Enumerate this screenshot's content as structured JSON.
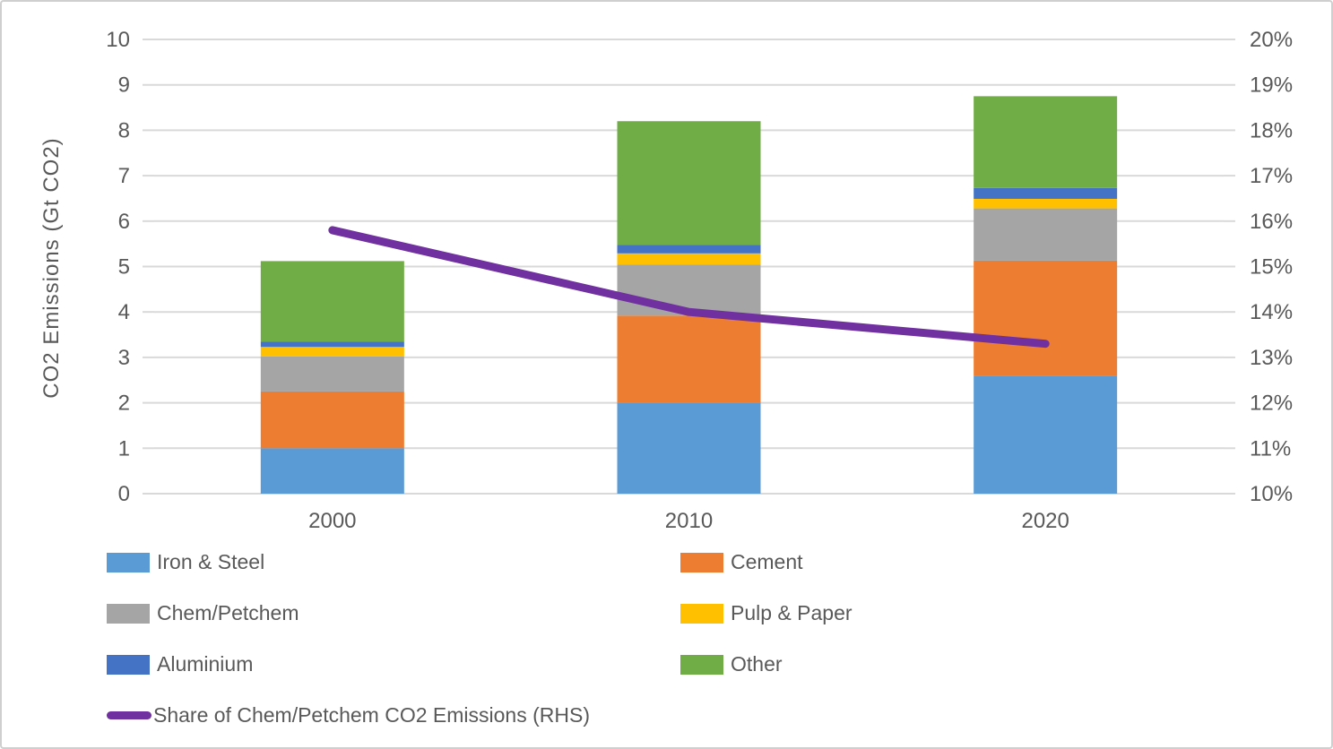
{
  "chart_data": {
    "type": "combo-stacked-bar-line",
    "title": "",
    "categories": [
      "2000",
      "2010",
      "2020"
    ],
    "stacked_series": [
      {
        "name": "Iron & Steel",
        "color": "#5B9BD5",
        "values": [
          1.0,
          2.0,
          2.6
        ]
      },
      {
        "name": "Cement",
        "color": "#ED7D31",
        "values": [
          1.25,
          1.92,
          2.53
        ]
      },
      {
        "name": "Chem/Petchem",
        "color": "#A5A5A5",
        "values": [
          0.77,
          1.12,
          1.15
        ]
      },
      {
        "name": "Pulp & Paper",
        "color": "#FFC000",
        "values": [
          0.21,
          0.25,
          0.21
        ]
      },
      {
        "name": "Aluminium",
        "color": "#4472C4",
        "values": [
          0.12,
          0.19,
          0.24
        ]
      },
      {
        "name": "Other",
        "color": "#70AD47",
        "values": [
          1.77,
          2.72,
          2.02
        ]
      }
    ],
    "bar_totals": [
      5.12,
      8.2,
      8.75
    ],
    "line_series": {
      "name": "Share of Chem/Petchem CO2 Emissions (RHS)",
      "color": "#7030A0",
      "axis": "right",
      "values_percent": [
        15.8,
        14.0,
        13.3
      ]
    },
    "left_axis": {
      "label": "CO2 Emissions (Gt CO2)",
      "min": 0,
      "max": 10,
      "step": 1,
      "tick_labels": [
        "0",
        "1",
        "2",
        "3",
        "4",
        "5",
        "6",
        "7",
        "8",
        "9",
        "10"
      ]
    },
    "right_axis": {
      "label": "",
      "min": 10,
      "max": 20,
      "step": 1,
      "tick_labels": [
        "10%",
        "11%",
        "12%",
        "13%",
        "14%",
        "15%",
        "16%",
        "17%",
        "18%",
        "19%",
        "20%"
      ]
    },
    "grid": true,
    "legend_position": "bottom",
    "colors": {
      "gridline": "#D9D9D9",
      "axis_text": "#595959",
      "background": "#FFFFFF",
      "frame_border": "#CFCFCF"
    }
  }
}
